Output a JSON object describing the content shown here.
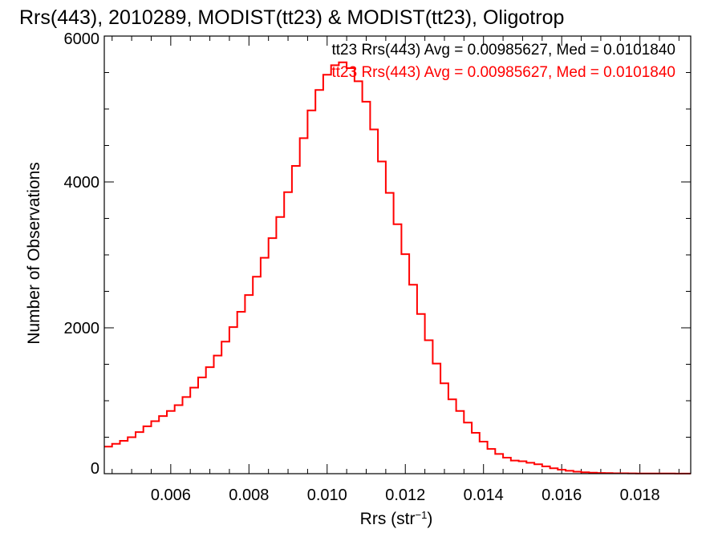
{
  "chart_data": {
    "type": "line",
    "step": true,
    "title": "Rrs(443), 2010289, MODIST(tt23) & MODIST(tt23), Oligotrop",
    "xlabel": "Rrs (str",
    "xlabel_sup": "−1",
    "xlabel_close": ")",
    "ylabel": "Number of Observations",
    "xlim": [
      0.0043,
      0.0193
    ],
    "ylim": [
      0,
      6000
    ],
    "x_ticks": [
      {
        "value": 0.006,
        "label": "0.006"
      },
      {
        "value": 0.008,
        "label": "0.008"
      },
      {
        "value": 0.01,
        "label": "0.010"
      },
      {
        "value": 0.012,
        "label": "0.012"
      },
      {
        "value": 0.014,
        "label": "0.014"
      },
      {
        "value": 0.016,
        "label": "0.016"
      },
      {
        "value": 0.018,
        "label": "0.018"
      }
    ],
    "y_ticks": [
      {
        "value": 0,
        "label": "0"
      },
      {
        "value": 2000,
        "label": "2000"
      },
      {
        "value": 4000,
        "label": "4000"
      },
      {
        "value": 6000,
        "label": "6000"
      }
    ],
    "legend": [
      {
        "text": "tt23 Rrs(443) Avg = 0.00985627, Med = 0.0101840",
        "color": "#000000"
      },
      {
        "text": "tt23 Rrs(443) Avg = 0.00985627, Med = 0.0101840",
        "color": "#ff0000"
      }
    ],
    "legend_position": "top-right",
    "grid": false,
    "series": [
      {
        "color": "#ff0000",
        "x": [
          0.0043,
          0.0045,
          0.0047,
          0.0049,
          0.0051,
          0.0053,
          0.0055,
          0.0057,
          0.0059,
          0.0061,
          0.0063,
          0.0065,
          0.0067,
          0.0069,
          0.0071,
          0.0073,
          0.0075,
          0.0077,
          0.0079,
          0.0081,
          0.0083,
          0.0085,
          0.0087,
          0.0089,
          0.0091,
          0.0093,
          0.0095,
          0.0097,
          0.0099,
          0.0101,
          0.0103,
          0.0105,
          0.0107,
          0.0109,
          0.0111,
          0.0113,
          0.0115,
          0.0117,
          0.0119,
          0.0121,
          0.0123,
          0.0125,
          0.0127,
          0.0129,
          0.0131,
          0.0133,
          0.0135,
          0.0137,
          0.0139,
          0.0141,
          0.0143,
          0.0145,
          0.0147,
          0.0149,
          0.0151,
          0.0153,
          0.0155,
          0.0157,
          0.0159,
          0.0161,
          0.0163,
          0.0165,
          0.0167,
          0.0169,
          0.0171,
          0.0173,
          0.0175,
          0.0177,
          0.0179,
          0.0181,
          0.0183,
          0.0185,
          0.0187,
          0.0189,
          0.0191,
          0.0193
        ],
        "y": [
          370,
          410,
          450,
          500,
          570,
          650,
          720,
          790,
          860,
          940,
          1050,
          1180,
          1320,
          1460,
          1620,
          1810,
          2010,
          2220,
          2450,
          2700,
          2960,
          3230,
          3520,
          3860,
          4220,
          4600,
          4980,
          5260,
          5470,
          5600,
          5640,
          5560,
          5380,
          5100,
          4720,
          4280,
          3850,
          3420,
          3010,
          2590,
          2190,
          1830,
          1510,
          1240,
          1020,
          860,
          700,
          560,
          440,
          340,
          270,
          220,
          180,
          170,
          150,
          130,
          100,
          75,
          55,
          40,
          28,
          20,
          14,
          10,
          8,
          6,
          5,
          4,
          3,
          3,
          2,
          2,
          2,
          1,
          1,
          1
        ]
      }
    ]
  }
}
